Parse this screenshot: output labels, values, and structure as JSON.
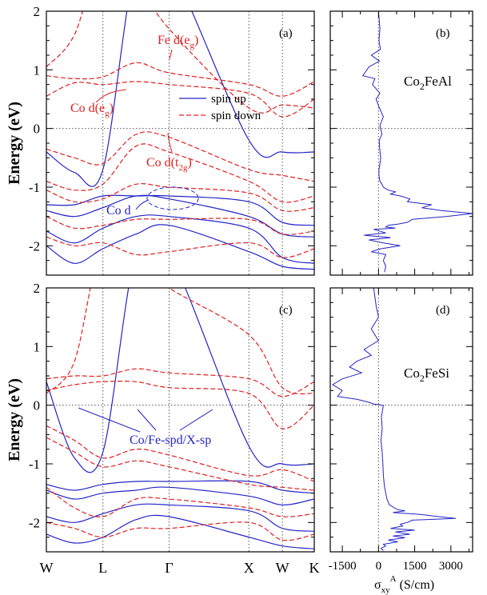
{
  "colors": {
    "spin_up": "#2424c8",
    "spin_down": "#e02020",
    "axis": "#000000",
    "grid": "#555555"
  },
  "chart_data": [
    {
      "panel": "(a)",
      "type": "line",
      "xlabel": "",
      "ylabel": "Energy (eV)",
      "ylim": [
        -2.5,
        2.0
      ],
      "y_ticks": [
        -2,
        -1,
        0,
        1,
        2
      ],
      "legend_placement": "top-right",
      "legend": [
        {
          "label": "spin up",
          "style": "solid",
          "color": "#2424c8"
        },
        {
          "label": "spin down",
          "style": "dashed",
          "color": "#e02020"
        }
      ],
      "annotations": [
        {
          "text": "Fe d(e",
          "sub": "g",
          "tail": ")",
          "color": "#e02020"
        },
        {
          "text": "Co d(e",
          "sub": "g",
          "tail": ")",
          "color": "#e02020"
        },
        {
          "text": "Co d(t",
          "sub": "2g",
          "tail": ")",
          "color": "#e02020"
        },
        {
          "text": "Co d",
          "sub": "",
          "tail": "",
          "color": "#2424c8"
        }
      ],
      "series": [
        {
          "name": "spin up",
          "style": "solid",
          "bands": [
            [
              -0.4,
              -0.75,
              -0.7,
              2.8,
              2.8,
              -0.2,
              -0.4,
              -0.4
            ],
            [
              -1.3,
              -1.3,
              -1.15,
              -1.15,
              -1.15,
              -1.25,
              -1.6,
              -1.65
            ],
            [
              -1.4,
              -1.5,
              -1.35,
              -1.15,
              -1.2,
              -1.5,
              -1.8,
              -1.85
            ],
            [
              -1.75,
              -1.95,
              -1.7,
              -1.5,
              -1.5,
              -1.7,
              -2.2,
              -2.3
            ],
            [
              -2.0,
              -2.3,
              -2.05,
              -1.8,
              -1.65,
              -2.1,
              -2.35,
              -2.4
            ]
          ]
        },
        {
          "name": "spin down",
          "style": "dashed",
          "bands": [
            [
              1.05,
              1.6,
              3.0,
              2.5,
              1.7,
              0.35,
              0.4,
              0.35
            ],
            [
              0.9,
              0.85,
              0.88,
              1.12,
              0.95,
              0.75,
              0.55,
              0.8
            ],
            [
              0.55,
              0.78,
              0.75,
              0.8,
              0.75,
              0.6,
              0.2,
              0.5
            ],
            [
              -0.35,
              -0.5,
              -0.6,
              -0.1,
              -0.15,
              -0.7,
              -0.8,
              -0.9
            ],
            [
              -0.9,
              -1.05,
              -0.95,
              -0.3,
              -0.4,
              -0.9,
              -1.25,
              -1.15
            ],
            [
              -1.05,
              -1.25,
              -1.2,
              -0.95,
              -1.0,
              -1.1,
              -1.4,
              -1.35
            ],
            [
              -1.5,
              -1.7,
              -1.65,
              -1.55,
              -1.55,
              -1.55,
              -1.8,
              -1.75
            ],
            [
              -1.85,
              -2.0,
              -1.95,
              -2.15,
              -2.1,
              -1.95,
              -2.2,
              -2.05
            ]
          ]
        }
      ]
    },
    {
      "panel": "(b)",
      "type": "line",
      "label_main": "Co",
      "label_sub": "2",
      "label_tail": "FeAl",
      "xlim": [
        -2000,
        3900
      ],
      "ylim": [
        -2.5,
        2.0
      ],
      "x": [
        0,
        60,
        20,
        80,
        -300,
        40,
        -400,
        -650,
        -150,
        -250,
        60,
        -100,
        40,
        200,
        60,
        140,
        30,
        50,
        90,
        60,
        20,
        20,
        40,
        60,
        140,
        200,
        400,
        700,
        500,
        900,
        1300,
        1200,
        2200,
        1800,
        2600,
        3900,
        2800,
        1400,
        1200,
        800,
        400,
        300,
        700,
        -200,
        300,
        -600,
        500,
        -400,
        200,
        900,
        100,
        -300,
        300,
        200,
        300,
        250
      ],
      "y": [
        2.0,
        1.7,
        1.5,
        1.35,
        1.25,
        1.15,
        1.05,
        0.9,
        0.85,
        0.75,
        0.6,
        0.5,
        0.35,
        0.2,
        0.05,
        -0.1,
        -0.2,
        -0.35,
        -0.5,
        -0.6,
        -0.7,
        -0.8,
        -0.85,
        -0.9,
        -0.95,
        -1.0,
        -1.05,
        -1.08,
        -1.12,
        -1.15,
        -1.2,
        -1.25,
        -1.3,
        -1.35,
        -1.4,
        -1.45,
        -1.5,
        -1.55,
        -1.6,
        -1.63,
        -1.65,
        -1.68,
        -1.7,
        -1.72,
        -1.78,
        -1.82,
        -1.86,
        -1.9,
        -1.95,
        -2.0,
        -2.05,
        -2.1,
        -2.15,
        -2.25,
        -2.35,
        -2.45
      ]
    },
    {
      "panel": "(c)",
      "type": "line",
      "xlabel": "",
      "ylabel": "Energy (eV)",
      "ylim": [
        -2.5,
        2.0
      ],
      "y_ticks": [
        -2,
        -1,
        0,
        1,
        2
      ],
      "k_labels": [
        "W",
        "L",
        "Γ",
        "X",
        "W",
        "K"
      ],
      "annotations": [
        {
          "text": "Co/Fe-spd/X-sp",
          "color": "#2424c8"
        }
      ],
      "series": [
        {
          "name": "spin up",
          "style": "solid",
          "bands": [
            [
              0.4,
              -0.9,
              -0.8,
              2.6,
              2.6,
              -0.7,
              -1.0,
              -1.0
            ],
            [
              -1.35,
              -1.45,
              -1.35,
              -1.3,
              -1.3,
              -1.3,
              -1.45,
              -1.5
            ],
            [
              -1.45,
              -1.6,
              -1.5,
              -1.45,
              -1.4,
              -1.55,
              -1.7,
              -1.6
            ],
            [
              -1.9,
              -2.0,
              -1.85,
              -1.7,
              -1.7,
              -1.8,
              -2.1,
              -2.15
            ],
            [
              -2.2,
              -2.35,
              -2.25,
              -1.95,
              -1.9,
              -2.25,
              -2.4,
              -2.45
            ]
          ]
        },
        {
          "name": "spin down",
          "style": "dashed",
          "bands": [
            [
              0.2,
              0.75,
              2.8,
              2.5,
              2.0,
              1.2,
              0.3,
              0.2
            ],
            [
              0.45,
              0.5,
              0.5,
              0.62,
              0.55,
              0.45,
              0.15,
              0.4
            ],
            [
              0.25,
              0.35,
              0.4,
              0.4,
              0.3,
              0.2,
              -0.4,
              0.0
            ],
            [
              -0.35,
              -0.6,
              -0.9,
              -0.75,
              -0.85,
              -1.2,
              -1.1,
              -1.3
            ],
            [
              -0.55,
              -0.8,
              -1.05,
              -0.95,
              -1.05,
              -1.35,
              -1.4,
              -1.45
            ],
            [
              -1.4,
              -1.75,
              -1.9,
              -1.6,
              -1.6,
              -1.75,
              -1.9,
              -1.85
            ],
            [
              -2.0,
              -2.1,
              -2.25,
              -2.1,
              -2.1,
              -2.0,
              -2.3,
              -2.2
            ]
          ]
        }
      ]
    },
    {
      "panel": "(d)",
      "type": "line",
      "label_main": "Co",
      "label_sub": "2",
      "label_tail": "FeSi",
      "xlabel_main": "σ",
      "xlabel_sub": "xy",
      "xlabel_sup": "A",
      "xlabel_tail": " (S/cm)",
      "xlim": [
        -2000,
        3900
      ],
      "x_ticks": [
        -1500,
        0,
        1500,
        3000
      ],
      "ylim": [
        -2.5,
        2.0
      ],
      "x": [
        -200,
        -100,
        0,
        -300,
        0,
        -600,
        -300,
        -900,
        -1200,
        -700,
        -1500,
        -1900,
        -1500,
        -1700,
        -900,
        -400,
        -200,
        200,
        120,
        150,
        100,
        150,
        180,
        200,
        250,
        300,
        350,
        400,
        450,
        550,
        650,
        800,
        1100,
        600,
        1700,
        2500,
        3200,
        1400,
        1200,
        900,
        1000,
        500,
        1500,
        700,
        1300,
        600,
        1100,
        400,
        800,
        200,
        300,
        100,
        200
      ],
      "y": [
        2.0,
        1.7,
        1.5,
        1.3,
        1.1,
        0.95,
        0.85,
        0.75,
        0.65,
        0.55,
        0.45,
        0.35,
        0.25,
        0.15,
        0.1,
        0.05,
        0.02,
        0.0,
        -0.2,
        -0.4,
        -0.6,
        -0.8,
        -1.0,
        -1.2,
        -1.4,
        -1.5,
        -1.6,
        -1.65,
        -1.7,
        -1.72,
        -1.75,
        -1.78,
        -1.8,
        -1.83,
        -1.86,
        -1.9,
        -1.93,
        -1.96,
        -2.0,
        -2.03,
        -2.06,
        -2.1,
        -2.13,
        -2.16,
        -2.2,
        -2.23,
        -2.26,
        -2.3,
        -2.33,
        -2.37,
        -2.4,
        -2.44,
        -2.48
      ]
    }
  ]
}
